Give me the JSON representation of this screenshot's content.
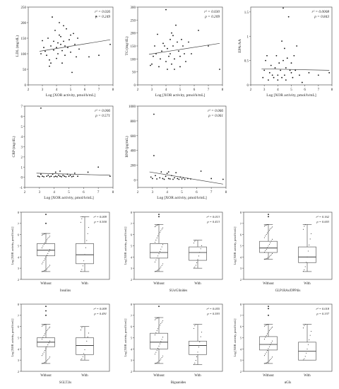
{
  "chart_data": [
    {
      "type": "scatter",
      "xlabel": "Log [XOR activity, pmol/h/mL]",
      "ylabel": "LDL (mg/dL)",
      "xlim": [
        2,
        8
      ],
      "ylim": [
        0,
        250
      ],
      "xticks": [
        2,
        3,
        4,
        5,
        6,
        7,
        8
      ],
      "yticks": [
        0,
        50,
        100,
        150,
        200,
        250
      ],
      "stats": {
        "r2": "r² = 0.026",
        "p": "p = 0.249"
      },
      "trend": {
        "x": [
          2.8,
          7.8
        ],
        "y": [
          108,
          145
        ]
      },
      "points": [
        [
          2.9,
          100
        ],
        [
          3.0,
          142
        ],
        [
          3.1,
          120
        ],
        [
          3.2,
          108
        ],
        [
          3.3,
          95
        ],
        [
          3.4,
          150
        ],
        [
          3.5,
          80
        ],
        [
          3.5,
          60
        ],
        [
          3.6,
          70
        ],
        [
          3.6,
          125
        ],
        [
          3.7,
          218
        ],
        [
          3.8,
          112
        ],
        [
          3.8,
          140
        ],
        [
          3.9,
          175
        ],
        [
          4.0,
          120
        ],
        [
          4.0,
          85
        ],
        [
          4.1,
          135
        ],
        [
          4.1,
          100
        ],
        [
          4.2,
          160
        ],
        [
          4.2,
          200
        ],
        [
          4.3,
          130
        ],
        [
          4.3,
          155
        ],
        [
          4.4,
          110
        ],
        [
          4.4,
          70
        ],
        [
          4.5,
          190
        ],
        [
          4.5,
          140
        ],
        [
          4.6,
          125
        ],
        [
          4.6,
          95
        ],
        [
          4.7,
          180
        ],
        [
          4.8,
          120
        ],
        [
          4.9,
          145
        ],
        [
          5.0,
          160
        ],
        [
          5.0,
          105
        ],
        [
          5.1,
          40
        ],
        [
          5.2,
          165
        ],
        [
          5.3,
          130
        ],
        [
          5.4,
          90
        ],
        [
          5.5,
          150
        ],
        [
          5.6,
          115
        ],
        [
          6.3,
          90
        ],
        [
          6.8,
          220
        ],
        [
          7.0,
          95
        ],
        [
          7.8,
          130
        ]
      ]
    },
    {
      "type": "scatter",
      "xlabel": "Log [XOR activity, pmol/h/mL]",
      "ylabel": "TG (mg/dL)",
      "xlim": [
        2,
        8
      ],
      "ylim": [
        0,
        300
      ],
      "xticks": [
        2,
        3,
        4,
        5,
        6,
        7,
        8
      ],
      "yticks": [
        0,
        50,
        100,
        150,
        200,
        250,
        300
      ],
      "stats": {
        "r2": "r² = 0.030",
        "p": "p = 0.209"
      },
      "trend": {
        "x": [
          2.8,
          7.8
        ],
        "y": [
          118,
          160
        ]
      },
      "points": [
        [
          2.9,
          75
        ],
        [
          3.0,
          80
        ],
        [
          3.1,
          110
        ],
        [
          3.2,
          150
        ],
        [
          3.3,
          120
        ],
        [
          3.4,
          195
        ],
        [
          3.5,
          70
        ],
        [
          3.6,
          100
        ],
        [
          3.7,
          130
        ],
        [
          3.8,
          160
        ],
        [
          3.9,
          150
        ],
        [
          4.0,
          90
        ],
        [
          4.0,
          290
        ],
        [
          4.1,
          140
        ],
        [
          4.1,
          60
        ],
        [
          4.2,
          110
        ],
        [
          4.3,
          175
        ],
        [
          4.3,
          120
        ],
        [
          4.4,
          200
        ],
        [
          4.4,
          80
        ],
        [
          4.5,
          150
        ],
        [
          4.5,
          190
        ],
        [
          4.6,
          100
        ],
        [
          4.6,
          60
        ],
        [
          4.7,
          230
        ],
        [
          4.8,
          165
        ],
        [
          4.9,
          130
        ],
        [
          5.0,
          110
        ],
        [
          5.0,
          70
        ],
        [
          5.1,
          175
        ],
        [
          5.2,
          150
        ],
        [
          5.3,
          120
        ],
        [
          5.4,
          90
        ],
        [
          5.6,
          165
        ],
        [
          5.8,
          120
        ],
        [
          6.3,
          210
        ],
        [
          7.0,
          150
        ],
        [
          7.8,
          60
        ]
      ]
    },
    {
      "type": "scatter",
      "xlabel": "Log [XOR activity, pmol/h/mL]",
      "ylabel": "EPA/AA",
      "xlim": [
        2,
        8
      ],
      "ylim": [
        0,
        1.6
      ],
      "xticks": [
        2,
        3,
        4,
        5,
        6,
        7,
        8
      ],
      "yticks": [
        0.0,
        0.5,
        1.0,
        1.5
      ],
      "stats": {
        "r2": "r² = 0.0008",
        "p": "p = 0.843"
      },
      "trend": {
        "x": [
          2.8,
          7.8
        ],
        "y": [
          0.33,
          0.3
        ]
      },
      "points": [
        [
          2.9,
          0.15
        ],
        [
          3.0,
          0.3
        ],
        [
          3.1,
          0.5
        ],
        [
          3.2,
          0.6
        ],
        [
          3.3,
          0.1
        ],
        [
          3.4,
          0.25
        ],
        [
          3.5,
          0.4
        ],
        [
          3.6,
          0.2
        ],
        [
          3.7,
          0.15
        ],
        [
          3.8,
          0.35
        ],
        [
          3.9,
          0.6
        ],
        [
          4.0,
          0.1
        ],
        [
          4.0,
          0.2
        ],
        [
          4.1,
          0.45
        ],
        [
          4.2,
          0.3
        ],
        [
          4.3,
          0.9
        ],
        [
          4.3,
          0.15
        ],
        [
          4.4,
          1.58
        ],
        [
          4.4,
          0.5
        ],
        [
          4.5,
          0.2
        ],
        [
          4.5,
          0.75
        ],
        [
          4.6,
          0.35
        ],
        [
          4.6,
          0.1
        ],
        [
          4.7,
          0.55
        ],
        [
          4.8,
          1.4
        ],
        [
          4.9,
          0.3
        ],
        [
          5.0,
          0.25
        ],
        [
          5.0,
          0.45
        ],
        [
          5.1,
          0.15
        ],
        [
          5.2,
          0.6
        ],
        [
          5.3,
          0.3
        ],
        [
          5.4,
          0.8
        ],
        [
          5.6,
          0.2
        ],
        [
          5.8,
          0.05
        ],
        [
          6.3,
          0.25
        ],
        [
          7.0,
          0.2
        ],
        [
          7.8,
          0.25
        ]
      ]
    },
    {
      "type": "scatter",
      "xlabel": "Log [XOR activity, pmol/h/mL]",
      "ylabel": "CRP (mg/dL)",
      "xlim": [
        2,
        8
      ],
      "ylim": [
        -1,
        7
      ],
      "xticks": [
        2,
        3,
        4,
        5,
        6,
        7,
        8
      ],
      "yticks": [
        -1,
        0,
        1,
        2,
        3,
        4,
        5,
        6,
        7
      ],
      "stats": {
        "r2": "r² = 0.006",
        "p": "p = 0.571"
      },
      "trend": {
        "x": [
          2.8,
          7.8
        ],
        "y": [
          0.4,
          0.2
        ]
      },
      "points": [
        [
          2.9,
          0.1
        ],
        [
          3.0,
          0.05
        ],
        [
          3.1,
          6.8
        ],
        [
          3.1,
          0.3
        ],
        [
          3.2,
          0.1
        ],
        [
          3.3,
          0.05
        ],
        [
          3.5,
          0.1
        ],
        [
          3.6,
          0.2
        ],
        [
          3.7,
          0.05
        ],
        [
          3.8,
          0.1
        ],
        [
          3.9,
          0.3
        ],
        [
          4.0,
          0.05
        ],
        [
          4.1,
          0.1
        ],
        [
          4.1,
          0.5
        ],
        [
          4.2,
          0.05
        ],
        [
          4.3,
          0.2
        ],
        [
          4.4,
          0.1
        ],
        [
          4.4,
          0.6
        ],
        [
          4.5,
          0.05
        ],
        [
          4.6,
          0.2
        ],
        [
          4.7,
          0.1
        ],
        [
          4.8,
          0.05
        ],
        [
          4.9,
          0.3
        ],
        [
          5.0,
          0.1
        ],
        [
          5.1,
          0.2
        ],
        [
          5.2,
          0.05
        ],
        [
          5.3,
          0.1
        ],
        [
          5.4,
          0.4
        ],
        [
          5.6,
          0.1
        ],
        [
          6.3,
          0.5
        ],
        [
          7.0,
          1.0
        ],
        [
          7.8,
          0.1
        ]
      ]
    },
    {
      "type": "scatter",
      "xlabel": "Log [XOR activity, pmol/h/mL]",
      "ylabel": "BNP (pg/mL)",
      "xlim": [
        2,
        8
      ],
      "ylim": [
        -100,
        1000
      ],
      "xticks": [
        2,
        3,
        4,
        5,
        6,
        7,
        8
      ],
      "yticks": [
        0,
        200,
        400,
        600,
        800,
        1000
      ],
      "stats": {
        "r2": "r² = 0.066",
        "p": "p = 0.061"
      },
      "trend": {
        "x": [
          2.8,
          7.8
        ],
        "y": [
          110,
          -55
        ]
      },
      "points": [
        [
          2.9,
          40
        ],
        [
          3.0,
          20
        ],
        [
          3.1,
          890
        ],
        [
          3.1,
          330
        ],
        [
          3.2,
          60
        ],
        [
          3.3,
          15
        ],
        [
          3.5,
          30
        ],
        [
          3.6,
          110
        ],
        [
          3.7,
          20
        ],
        [
          3.8,
          10
        ],
        [
          3.9,
          50
        ],
        [
          4.0,
          90
        ],
        [
          4.1,
          20
        ],
        [
          4.1,
          110
        ],
        [
          4.2,
          15
        ],
        [
          4.3,
          60
        ],
        [
          4.4,
          10
        ],
        [
          4.5,
          30
        ],
        [
          4.6,
          100
        ],
        [
          4.7,
          20
        ],
        [
          4.8,
          10
        ],
        [
          4.9,
          40
        ],
        [
          5.0,
          15
        ],
        [
          5.1,
          30
        ],
        [
          5.2,
          10
        ],
        [
          5.4,
          20
        ],
        [
          5.6,
          15
        ],
        [
          6.3,
          120
        ],
        [
          7.0,
          20
        ],
        [
          7.8,
          10
        ]
      ]
    },
    {
      "type": "box",
      "xlabel": "Insulins",
      "ylabel": "Log [XOR activity, pmol/h/mL]",
      "ylim": [
        2,
        8
      ],
      "yticks": [
        2,
        3,
        4,
        5,
        6,
        7,
        8
      ],
      "categories": [
        "Without",
        "With"
      ],
      "stats": {
        "r2": "r² = 0.009",
        "p": "p = 0.500"
      },
      "boxes": [
        {
          "min": 2.7,
          "q1": 4.1,
          "median": 4.6,
          "q3": 5.2,
          "max": 6.1,
          "outliers": [
            7.0,
            7.8
          ]
        },
        {
          "min": 2.7,
          "q1": 3.4,
          "median": 4.2,
          "q3": 5.2,
          "max": 7.6,
          "outliers": []
        }
      ]
    },
    {
      "type": "box",
      "xlabel": "SUs/Glinides",
      "ylabel": "Log [XOR activity, pmol/h/mL]",
      "ylim": [
        2,
        8
      ],
      "yticks": [
        2,
        3,
        4,
        5,
        6,
        7,
        8
      ],
      "categories": [
        "Without",
        "With"
      ],
      "stats": {
        "r2": "r² = 0.013",
        "p": "p = 0.413"
      },
      "boxes": [
        {
          "min": 2.7,
          "q1": 3.9,
          "median": 4.4,
          "q3": 5.2,
          "max": 6.9,
          "outliers": [
            7.6,
            7.8
          ]
        },
        {
          "min": 3.0,
          "q1": 3.7,
          "median": 4.4,
          "q3": 4.9,
          "max": 5.5,
          "outliers": []
        }
      ]
    },
    {
      "type": "box",
      "xlabel": "GLP1RAs/DPP4is",
      "ylabel": "Log [XOR activity, pmol/h/mL]",
      "ylim": [
        2,
        8
      ],
      "yticks": [
        2,
        3,
        4,
        5,
        6,
        7,
        8
      ],
      "categories": [
        "Without",
        "With"
      ],
      "stats": {
        "r2": "r² = 0.162",
        "p": "p = 0.003"
      },
      "boxes": [
        {
          "min": 3.8,
          "q1": 4.4,
          "median": 4.8,
          "q3": 5.4,
          "max": 6.9,
          "outliers": [
            7.6,
            7.8
          ]
        },
        {
          "min": 2.7,
          "q1": 3.5,
          "median": 4.0,
          "q3": 4.9,
          "max": 6.9,
          "outliers": []
        }
      ]
    },
    {
      "type": "box",
      "xlabel": "SGLT2is",
      "ylabel": "Log [XOR activity, pmol/h/mL]",
      "ylim": [
        2,
        8
      ],
      "yticks": [
        2,
        3,
        4,
        5,
        6,
        7,
        8
      ],
      "categories": [
        "Without",
        "With"
      ],
      "stats": {
        "r2": "r² = 0.009",
        "p": "p = 0.491"
      },
      "boxes": [
        {
          "min": 2.7,
          "q1": 4.2,
          "median": 4.6,
          "q3": 5.0,
          "max": 6.2,
          "outliers": [
            7.0,
            7.4,
            7.8
          ]
        },
        {
          "min": 3.0,
          "q1": 3.5,
          "median": 4.3,
          "q3": 5.0,
          "max": 6.0,
          "outliers": []
        }
      ]
    },
    {
      "type": "box",
      "xlabel": "Biguanides",
      "ylabel": "Log [XOR activity, pmol/h/mL]",
      "ylim": [
        2,
        8
      ],
      "yticks": [
        2,
        3,
        4,
        5,
        6,
        7,
        8
      ],
      "categories": [
        "Without",
        "With"
      ],
      "stats": {
        "r2": "r² = 0.055",
        "p": "p = 0.593"
      },
      "boxes": [
        {
          "min": 2.7,
          "q1": 4.0,
          "median": 4.6,
          "q3": 5.4,
          "max": 6.8,
          "outliers": [
            7.8
          ]
        },
        {
          "min": 2.6,
          "q1": 3.5,
          "median": 4.3,
          "q3": 4.7,
          "max": 6.2,
          "outliers": []
        }
      ]
    },
    {
      "type": "box",
      "xlabel": "αGIs",
      "ylabel": "Log [XOR activity, pmol/h/mL]",
      "ylim": [
        2,
        8
      ],
      "yticks": [
        2,
        3,
        4,
        5,
        6,
        7,
        8
      ],
      "categories": [
        "Without",
        "With"
      ],
      "stats": {
        "r2": "r² = 0.018",
        "p": "p = 0.337"
      },
      "boxes": [
        {
          "min": 2.7,
          "q1": 3.9,
          "median": 4.4,
          "q3": 5.1,
          "max": 6.2,
          "outliers": [
            7.0,
            7.6,
            7.8
          ]
        },
        {
          "min": 3.0,
          "q1": 3.0,
          "median": 3.8,
          "q3": 4.6,
          "max": 6.2,
          "outliers": []
        }
      ]
    }
  ]
}
